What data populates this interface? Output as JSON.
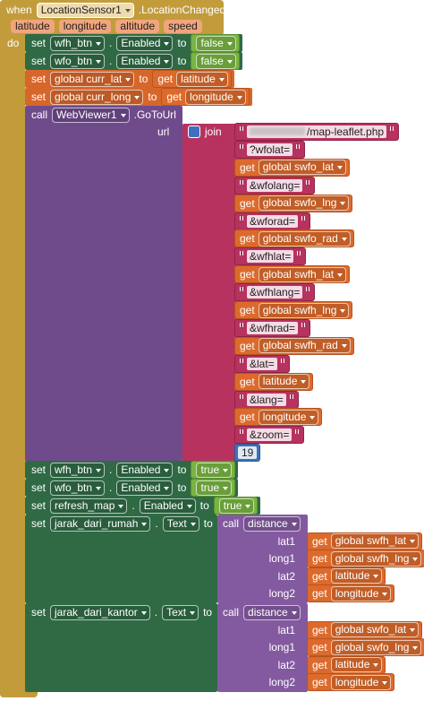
{
  "event": {
    "keyword": "when",
    "component": "LocationSensor1",
    "event": ".LocationChanged",
    "params": [
      "latitude",
      "longitude",
      "altitude",
      "speed"
    ],
    "do": "do"
  },
  "statements": [
    {
      "kind": "set-property",
      "set": "set",
      "component": "wfh_btn",
      "dot": ".",
      "property": "Enabled",
      "to": "to",
      "value": "false"
    },
    {
      "kind": "set-property",
      "set": "set",
      "component": "wfo_btn",
      "dot": ".",
      "property": "Enabled",
      "to": "to",
      "value": "false"
    },
    {
      "kind": "set-global",
      "set": "set",
      "variable": "global curr_lat",
      "to": "to",
      "get": "get",
      "source": "latitude"
    },
    {
      "kind": "set-global",
      "set": "set",
      "variable": "global curr_long",
      "to": "to",
      "get": "get",
      "source": "longitude"
    },
    {
      "kind": "call",
      "call": "call",
      "component": "WebViewer1",
      "method": ".GoToUrl",
      "socket": "url",
      "join": "join",
      "items": [
        {
          "text": "/map-leaflet.php"
        },
        {
          "text": "?wfolat="
        },
        {
          "get": "get",
          "var": "global swfo_lat"
        },
        {
          "text": "&wfolang="
        },
        {
          "get": "get",
          "var": "global swfo_lng"
        },
        {
          "text": "&wforad="
        },
        {
          "get": "get",
          "var": "global swfo_rad"
        },
        {
          "text": "&wfhlat="
        },
        {
          "get": "get",
          "var": "global swfh_lat"
        },
        {
          "text": "&wfhlang="
        },
        {
          "get": "get",
          "var": "global swfh_lng"
        },
        {
          "text": "&wfhrad="
        },
        {
          "get": "get",
          "var": "global swfh_rad"
        },
        {
          "text": "&lat="
        },
        {
          "get": "get",
          "var": "latitude"
        },
        {
          "text": "&lang="
        },
        {
          "get": "get",
          "var": "longitude"
        },
        {
          "text": "&zoom="
        },
        {
          "number": 19
        }
      ]
    },
    {
      "kind": "set-property",
      "set": "set",
      "component": "wfh_btn",
      "dot": ".",
      "property": "Enabled",
      "to": "to",
      "value": "true"
    },
    {
      "kind": "set-property",
      "set": "set",
      "component": "wfo_btn",
      "dot": ".",
      "property": "Enabled",
      "to": "to",
      "value": "true"
    },
    {
      "kind": "set-property",
      "set": "set",
      "component": "refresh_map",
      "dot": ".",
      "property": "Enabled",
      "to": "to",
      "value": "true"
    },
    {
      "kind": "set-call",
      "set": "set",
      "component": "jarak_dari_rumah",
      "dot": ".",
      "property": "Text",
      "to": "to",
      "call": "call",
      "procedure": "distance",
      "args": [
        {
          "name": "lat1",
          "get": "get",
          "var": "global swfh_lat"
        },
        {
          "name": "long1",
          "get": "get",
          "var": "global swfh_lng"
        },
        {
          "name": "lat2",
          "get": "get",
          "var": "latitude"
        },
        {
          "name": "long2",
          "get": "get",
          "var": "longitude"
        }
      ]
    },
    {
      "kind": "set-call",
      "set": "set",
      "component": "jarak_dari_kantor",
      "dot": ".",
      "property": "Text",
      "to": "to",
      "call": "call",
      "procedure": "distance",
      "args": [
        {
          "name": "lat1",
          "get": "get",
          "var": "global swfo_lat"
        },
        {
          "name": "long1",
          "get": "get",
          "var": "global swfo_lng"
        },
        {
          "name": "lat2",
          "get": "get",
          "var": "latitude"
        },
        {
          "name": "long2",
          "get": "get",
          "var": "longitude"
        }
      ]
    }
  ]
}
